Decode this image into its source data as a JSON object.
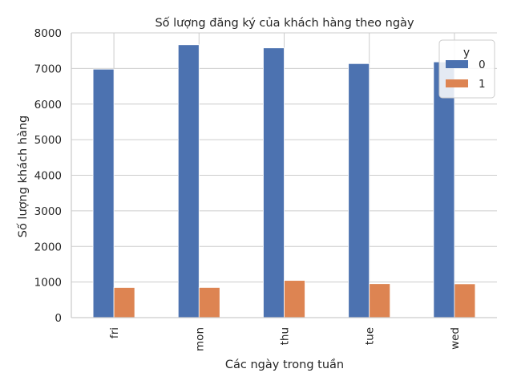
{
  "chart_data": {
    "type": "bar",
    "title": "Số lượng đăng ký của khách hàng theo ngày",
    "xlabel": "Các ngày trong tuần",
    "ylabel": "Số lượng khách hàng",
    "categories": [
      "fri",
      "mon",
      "thu",
      "tue",
      "wed"
    ],
    "series": [
      {
        "name": "0",
        "values": [
          6981,
          7667,
          7578,
          7137,
          7185
        ]
      },
      {
        "name": "1",
        "values": [
          846,
          847,
          1045,
          953,
          949
        ]
      }
    ],
    "ylim": [
      0,
      8000
    ],
    "yticks": [
      0,
      1000,
      2000,
      3000,
      4000,
      5000,
      6000,
      7000,
      8000
    ],
    "grid": true,
    "legend": {
      "title": "y",
      "placement": "top-right"
    },
    "colors": [
      "#4c72b0",
      "#dd8452"
    ]
  }
}
